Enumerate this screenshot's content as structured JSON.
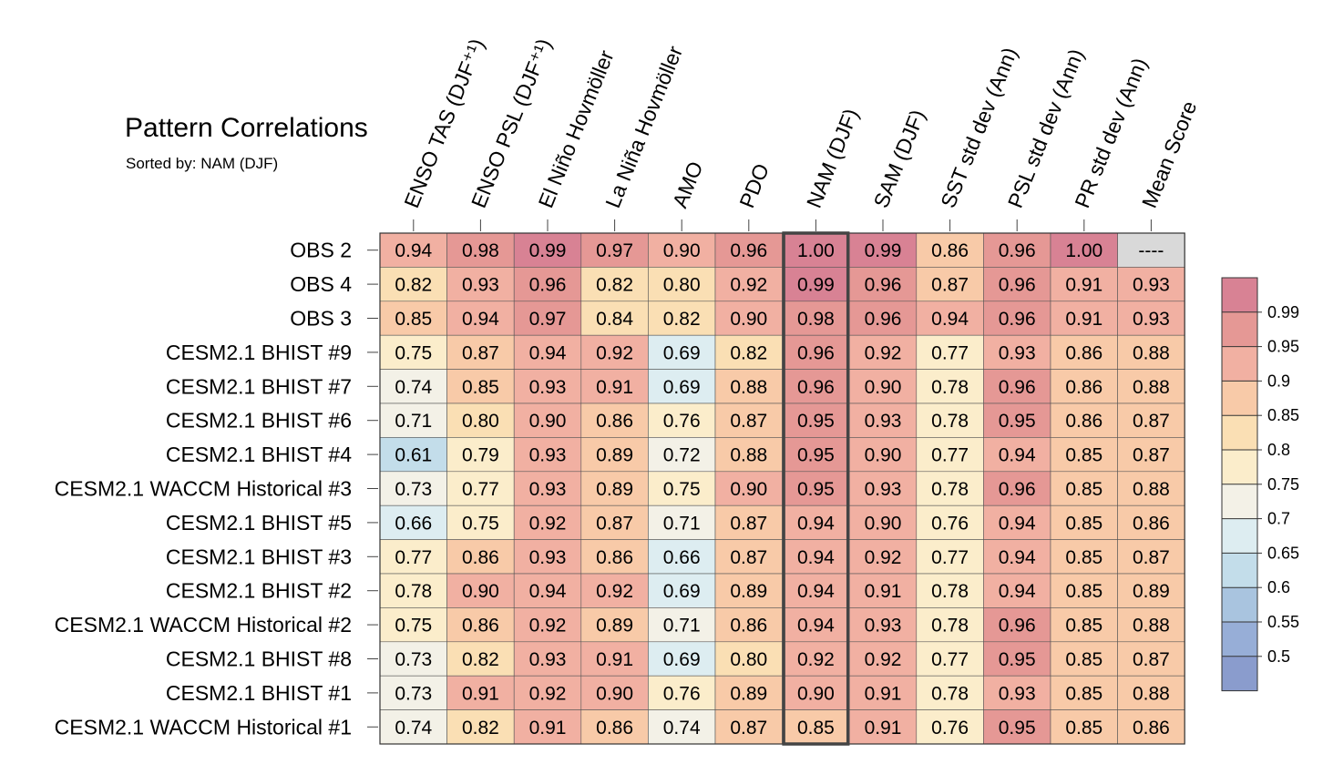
{
  "chart_data": {
    "type": "heatmap",
    "title": "Pattern Correlations",
    "subtitle": "Sorted by: NAM (DJF)",
    "highlight_column": "NAM (DJF)",
    "columns": [
      "ENSO TAS (DJF⁺¹)",
      "ENSO PSL (DJF⁺¹)",
      "El Niño Hovmöller",
      "La Niña Hovmöller",
      "AMO",
      "PDO",
      "NAM (DJF)",
      "SAM (DJF)",
      "SST std dev (Ann)",
      "PSL std dev (Ann)",
      "PR std dev (Ann)",
      "Mean Score"
    ],
    "rows": [
      {
        "label": "OBS 2",
        "values": [
          "0.94",
          "0.98",
          "0.99",
          "0.97",
          "0.90",
          "0.96",
          "1.00",
          "0.99",
          "0.86",
          "0.96",
          "1.00",
          "----"
        ]
      },
      {
        "label": "OBS 4",
        "values": [
          "0.82",
          "0.93",
          "0.96",
          "0.82",
          "0.80",
          "0.92",
          "0.99",
          "0.96",
          "0.87",
          "0.96",
          "0.91",
          "0.93"
        ]
      },
      {
        "label": "OBS 3",
        "values": [
          "0.85",
          "0.94",
          "0.97",
          "0.84",
          "0.82",
          "0.90",
          "0.98",
          "0.96",
          "0.94",
          "0.96",
          "0.91",
          "0.93"
        ]
      },
      {
        "label": "CESM2.1 BHIST #9",
        "values": [
          "0.75",
          "0.87",
          "0.94",
          "0.92",
          "0.69",
          "0.82",
          "0.96",
          "0.92",
          "0.77",
          "0.93",
          "0.86",
          "0.88"
        ]
      },
      {
        "label": "CESM2.1 BHIST #7",
        "values": [
          "0.74",
          "0.85",
          "0.93",
          "0.91",
          "0.69",
          "0.88",
          "0.96",
          "0.90",
          "0.78",
          "0.96",
          "0.86",
          "0.88"
        ]
      },
      {
        "label": "CESM2.1 BHIST #6",
        "values": [
          "0.71",
          "0.80",
          "0.90",
          "0.86",
          "0.76",
          "0.87",
          "0.95",
          "0.93",
          "0.78",
          "0.95",
          "0.86",
          "0.87"
        ]
      },
      {
        "label": "CESM2.1 BHIST #4",
        "values": [
          "0.61",
          "0.79",
          "0.93",
          "0.89",
          "0.72",
          "0.88",
          "0.95",
          "0.90",
          "0.77",
          "0.94",
          "0.85",
          "0.87"
        ]
      },
      {
        "label": "CESM2.1 WACCM Historical #3",
        "values": [
          "0.73",
          "0.77",
          "0.93",
          "0.89",
          "0.75",
          "0.90",
          "0.95",
          "0.93",
          "0.78",
          "0.96",
          "0.85",
          "0.88"
        ]
      },
      {
        "label": "CESM2.1 BHIST #5",
        "values": [
          "0.66",
          "0.75",
          "0.92",
          "0.87",
          "0.71",
          "0.87",
          "0.94",
          "0.90",
          "0.76",
          "0.94",
          "0.85",
          "0.86"
        ]
      },
      {
        "label": "CESM2.1 BHIST #3",
        "values": [
          "0.77",
          "0.86",
          "0.93",
          "0.86",
          "0.66",
          "0.87",
          "0.94",
          "0.92",
          "0.77",
          "0.94",
          "0.85",
          "0.87"
        ]
      },
      {
        "label": "CESM2.1 BHIST #2",
        "values": [
          "0.78",
          "0.90",
          "0.94",
          "0.92",
          "0.69",
          "0.89",
          "0.94",
          "0.91",
          "0.78",
          "0.94",
          "0.85",
          "0.89"
        ]
      },
      {
        "label": "CESM2.1 WACCM Historical #2",
        "values": [
          "0.75",
          "0.86",
          "0.92",
          "0.89",
          "0.71",
          "0.86",
          "0.94",
          "0.93",
          "0.78",
          "0.96",
          "0.85",
          "0.88"
        ]
      },
      {
        "label": "CESM2.1 BHIST #8",
        "values": [
          "0.73",
          "0.82",
          "0.93",
          "0.91",
          "0.69",
          "0.80",
          "0.92",
          "0.92",
          "0.77",
          "0.95",
          "0.85",
          "0.87"
        ]
      },
      {
        "label": "CESM2.1 BHIST #1",
        "values": [
          "0.73",
          "0.91",
          "0.92",
          "0.90",
          "0.76",
          "0.89",
          "0.90",
          "0.91",
          "0.78",
          "0.93",
          "0.85",
          "0.88"
        ]
      },
      {
        "label": "CESM2.1 WACCM Historical #1",
        "values": [
          "0.74",
          "0.82",
          "0.91",
          "0.86",
          "0.74",
          "0.87",
          "0.85",
          "0.91",
          "0.76",
          "0.95",
          "0.85",
          "0.86"
        ]
      }
    ],
    "colorbar": {
      "levels": [
        "0.99",
        "0.95",
        "0.9",
        "0.85",
        "0.8",
        "0.75",
        "0.7",
        "0.65",
        "0.6",
        "0.55",
        "0.5"
      ],
      "bin_colors_top_to_bottom": [
        "#d88294",
        "#e59895",
        "#f1b0a2",
        "#f8caa8",
        "#fadfb4",
        "#fbedcb",
        "#f3f1e7",
        "#ddedf1",
        "#c3ddea",
        "#a9c4df",
        "#97aed7",
        "#8a9ccd"
      ],
      "missing_color": "#d9d9d9"
    }
  }
}
